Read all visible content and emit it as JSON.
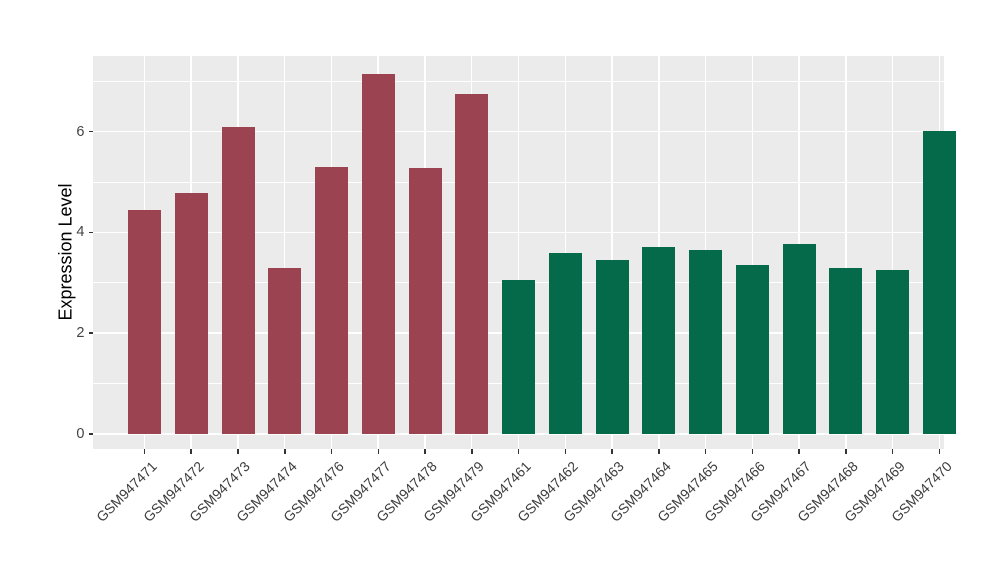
{
  "figure": {
    "background": "#ffffff"
  },
  "chart_data": {
    "type": "bar",
    "title": "",
    "xlabel": "",
    "ylabel": "Expression Level",
    "categories": [
      "GSM947471",
      "GSM947472",
      "GSM947473",
      "GSM947474",
      "GSM947476",
      "GSM947477",
      "GSM947478",
      "GSM947479",
      "GSM947461",
      "GSM947462",
      "GSM947463",
      "GSM947464",
      "GSM947465",
      "GSM947466",
      "GSM947467",
      "GSM947468",
      "GSM947469",
      "GSM947470"
    ],
    "values": [
      4.45,
      4.78,
      6.1,
      3.3,
      5.3,
      7.15,
      5.27,
      6.75,
      3.05,
      3.6,
      3.45,
      3.72,
      3.65,
      3.35,
      3.78,
      3.3,
      3.25,
      6.02
    ],
    "groups": [
      "group1",
      "group1",
      "group1",
      "group1",
      "group1",
      "group1",
      "group1",
      "group1",
      "group2",
      "group2",
      "group2",
      "group2",
      "group2",
      "group2",
      "group2",
      "group2",
      "group2",
      "group2"
    ],
    "group_colors": {
      "group1": "#9B4350",
      "group2": "#046A4A"
    },
    "ylim": [
      0,
      7.5
    ],
    "yticks": [
      0,
      2,
      4,
      6
    ],
    "yticks_minor": [
      1,
      3,
      5,
      7
    ],
    "grid": true,
    "legend_position": "none",
    "panel_background": "#EBEBEB",
    "major_gridline_color": "#FFFFFF",
    "minor_gridline_color": "#FFFFFF",
    "axis_text_color": "#444444",
    "tick_mark_color": "#333333"
  }
}
